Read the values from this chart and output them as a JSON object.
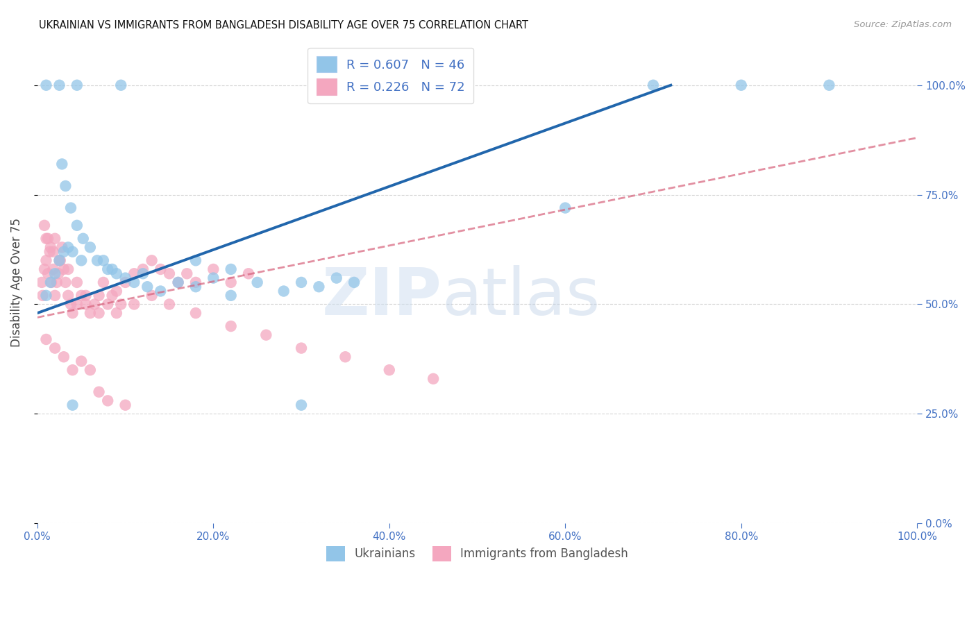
{
  "title": "UKRAINIAN VS IMMIGRANTS FROM BANGLADESH DISABILITY AGE OVER 75 CORRELATION CHART",
  "source": "Source: ZipAtlas.com",
  "ylabel": "Disability Age Over 75",
  "x_tick_labels": [
    "0.0%",
    "20.0%",
    "40.0%",
    "60.0%",
    "80.0%",
    "100.0%"
  ],
  "x_tick_values": [
    0.0,
    20.0,
    40.0,
    60.0,
    80.0,
    100.0
  ],
  "y_tick_labels": [
    "0.0%",
    "25.0%",
    "50.0%",
    "75.0%",
    "100.0%"
  ],
  "y_tick_values": [
    0.0,
    25.0,
    50.0,
    75.0,
    100.0
  ],
  "legend_label1": "Ukrainians",
  "legend_label2": "Immigrants from Bangladesh",
  "R1": 0.607,
  "N1": 46,
  "R2": 0.226,
  "N2": 72,
  "blue_color": "#92c5e8",
  "pink_color": "#f4a7bf",
  "blue_line_color": "#2166ac",
  "pink_line_color": "#d6607a",
  "background_color": "#ffffff",
  "grid_color": "#cccccc",
  "xlim": [
    0,
    100
  ],
  "ylim": [
    0,
    110
  ],
  "blue_scatter_x": [
    1.0,
    2.5,
    4.5,
    9.5,
    2.8,
    3.2,
    3.8,
    4.5,
    5.2,
    6.0,
    6.8,
    7.5,
    8.5,
    9.0,
    10.0,
    11.0,
    12.5,
    14.0,
    16.0,
    18.0,
    20.0,
    22.0,
    25.0,
    28.0,
    30.0,
    32.0,
    34.0,
    36.0,
    22.0,
    18.0,
    12.0,
    8.0,
    5.0,
    4.0,
    3.5,
    3.0,
    2.5,
    2.0,
    1.5,
    1.0,
    80.0,
    90.0,
    70.0,
    60.0,
    30.0,
    4.0
  ],
  "blue_scatter_y": [
    100.0,
    100.0,
    100.0,
    100.0,
    82.0,
    77.0,
    72.0,
    68.0,
    65.0,
    63.0,
    60.0,
    60.0,
    58.0,
    57.0,
    56.0,
    55.0,
    54.0,
    53.0,
    55.0,
    54.0,
    56.0,
    52.0,
    55.0,
    53.0,
    55.0,
    54.0,
    56.0,
    55.0,
    58.0,
    60.0,
    57.0,
    58.0,
    60.0,
    62.0,
    63.0,
    62.0,
    60.0,
    57.0,
    55.0,
    52.0,
    100.0,
    100.0,
    100.0,
    72.0,
    27.0,
    27.0
  ],
  "blue_line_x0": 0.0,
  "blue_line_y0": 48.0,
  "blue_line_x1": 72.0,
  "blue_line_y1": 100.0,
  "pink_line_x0": 0.0,
  "pink_line_y0": 47.0,
  "pink_line_x1": 100.0,
  "pink_line_y1": 88.0,
  "pink_scatter_x": [
    0.5,
    0.6,
    0.8,
    1.0,
    1.2,
    1.4,
    1.6,
    1.8,
    2.0,
    2.2,
    2.4,
    2.6,
    2.8,
    3.0,
    3.2,
    3.5,
    3.8,
    4.0,
    4.5,
    5.0,
    5.5,
    6.0,
    6.5,
    7.0,
    7.5,
    8.0,
    8.5,
    9.0,
    9.5,
    10.0,
    11.0,
    12.0,
    13.0,
    14.0,
    15.0,
    16.0,
    17.0,
    18.0,
    20.0,
    22.0,
    24.0,
    1.0,
    1.5,
    2.0,
    0.8,
    1.2,
    1.8,
    2.5,
    3.5,
    4.5,
    5.5,
    7.0,
    9.0,
    11.0,
    13.0,
    15.0,
    18.0,
    22.0,
    26.0,
    30.0,
    35.0,
    40.0,
    45.0,
    1.0,
    2.0,
    3.0,
    4.0,
    5.0,
    6.0,
    7.0,
    8.0,
    10.0
  ],
  "pink_scatter_y": [
    55.0,
    52.0,
    58.0,
    60.0,
    57.0,
    62.0,
    55.0,
    58.0,
    52.0,
    55.0,
    57.0,
    60.0,
    63.0,
    58.0,
    55.0,
    52.0,
    50.0,
    48.0,
    50.0,
    52.0,
    50.0,
    48.0,
    50.0,
    52.0,
    55.0,
    50.0,
    52.0,
    53.0,
    50.0,
    55.0,
    57.0,
    58.0,
    60.0,
    58.0,
    57.0,
    55.0,
    57.0,
    55.0,
    58.0,
    55.0,
    57.0,
    65.0,
    63.0,
    65.0,
    68.0,
    65.0,
    62.0,
    60.0,
    58.0,
    55.0,
    52.0,
    48.0,
    48.0,
    50.0,
    52.0,
    50.0,
    48.0,
    45.0,
    43.0,
    40.0,
    38.0,
    35.0,
    33.0,
    42.0,
    40.0,
    38.0,
    35.0,
    37.0,
    35.0,
    30.0,
    28.0,
    27.0
  ]
}
